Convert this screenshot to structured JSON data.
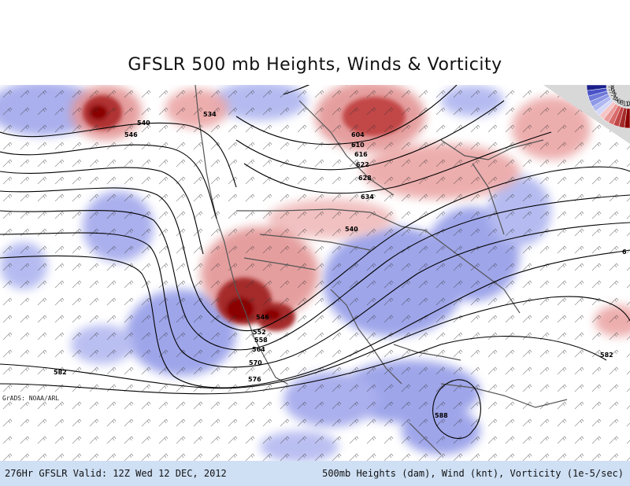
{
  "title": "GFSLR 500 mb Heights, Winds & Vorticity",
  "credit": "GrADS: NOAA/ARL",
  "footer": {
    "valid": "276Hr GFSLR Valid: 12Z Wed 12 DEC, 2012",
    "fields": "500mb Heights (dam), Wind (knt), Vorticity (1e-5/sec)"
  },
  "contour_labels": [
    "540",
    "546",
    "534",
    "604",
    "610",
    "616",
    "622",
    "628",
    "634",
    "540",
    "546",
    "552",
    "558",
    "564",
    "570",
    "576",
    "582",
    "582",
    "588",
    "6"
  ],
  "legend": {
    "labels": [
      "12",
      "10",
      "8",
      "6",
      "4",
      "2",
      "-2",
      "-4",
      "-6",
      "-8"
    ],
    "colors": {
      "positive": [
        "#8b0000",
        "#a52a2a",
        "#c24646",
        "#d96b6b",
        "#eb9a9a",
        "#f6c6c6"
      ],
      "negative": [
        "#d4d8f8",
        "#b0b8f0",
        "#8e98e6",
        "#6d78d8",
        "#4a53c8",
        "#1b1f8a"
      ]
    }
  },
  "colors": {
    "positive_vorticity": "#c83232",
    "negative_vorticity": "#7e84e0",
    "borders": "#555555",
    "contours": "#000000",
    "footer_bg": "#cfe0f5"
  }
}
